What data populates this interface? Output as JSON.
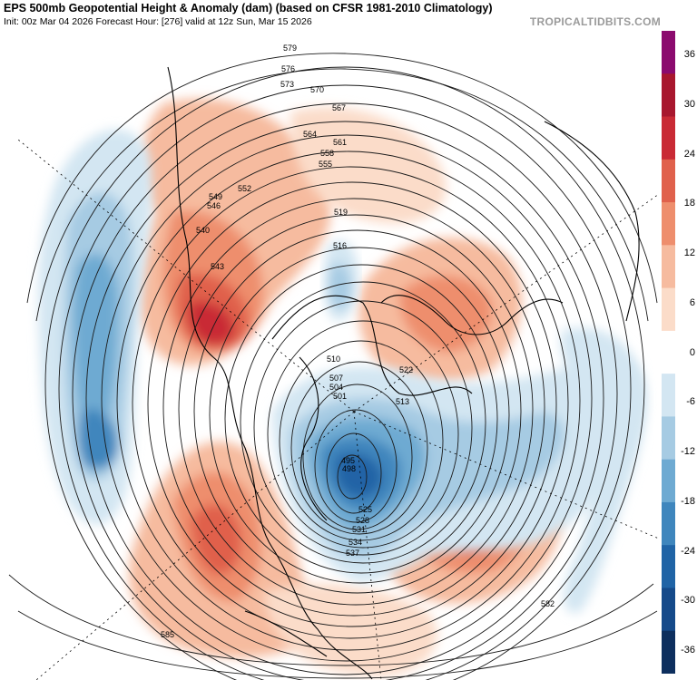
{
  "header": {
    "title": "EPS 500mb Geopotential Height & Anomaly (dam) (based on CFSR 1981-2010 Climatology)",
    "subtitle": "Init: 00z Mar 04 2026   Forecast Hour: [276]   valid at 12z Sun, Mar 15 2026",
    "brand": "TROPICALTIDBITS.COM"
  },
  "colorbar": {
    "labels": [
      "36",
      "30",
      "24",
      "18",
      "12",
      "6",
      "0",
      "-6",
      "-12",
      "-18",
      "-24",
      "-30",
      "-36"
    ],
    "colors": [
      "#8b0a6e",
      "#a8172e",
      "#c92a35",
      "#e0614c",
      "#ee8e6d",
      "#f6bb9f",
      "#fbdcc9",
      "#ffffff",
      "#d3e6f2",
      "#a6cbe3",
      "#6eaad2",
      "#3f86bd",
      "#2064a6",
      "#154a8a",
      "#0d2f5e"
    ]
  },
  "map": {
    "anomalies": [
      {
        "name": "ridge-western-north-america",
        "sign": "positive",
        "max_dam": 30
      },
      {
        "name": "ridge-north-atlantic",
        "sign": "positive",
        "max_dam": 18
      },
      {
        "name": "ridge-europe",
        "sign": "positive",
        "max_dam": 12
      },
      {
        "name": "ridge-bering-siberia",
        "sign": "positive",
        "max_dam": 12
      },
      {
        "name": "trough-eastern-canada",
        "sign": "negative",
        "max_dam": -24
      },
      {
        "name": "trough-north-pacific",
        "sign": "negative",
        "max_dam": -18
      },
      {
        "name": "trough-subtropical-atlantic",
        "sign": "negative",
        "max_dam": -12
      }
    ],
    "contour_labels": [
      "579",
      "576",
      "573",
      "570",
      "567",
      "564",
      "561",
      "558",
      "555",
      "552",
      "549",
      "546",
      "543",
      "540",
      "519",
      "516",
      "510",
      "507",
      "504",
      "501",
      "498",
      "495",
      "513",
      "522",
      "525",
      "528",
      "531",
      "534",
      "537",
      "582",
      "585"
    ]
  }
}
